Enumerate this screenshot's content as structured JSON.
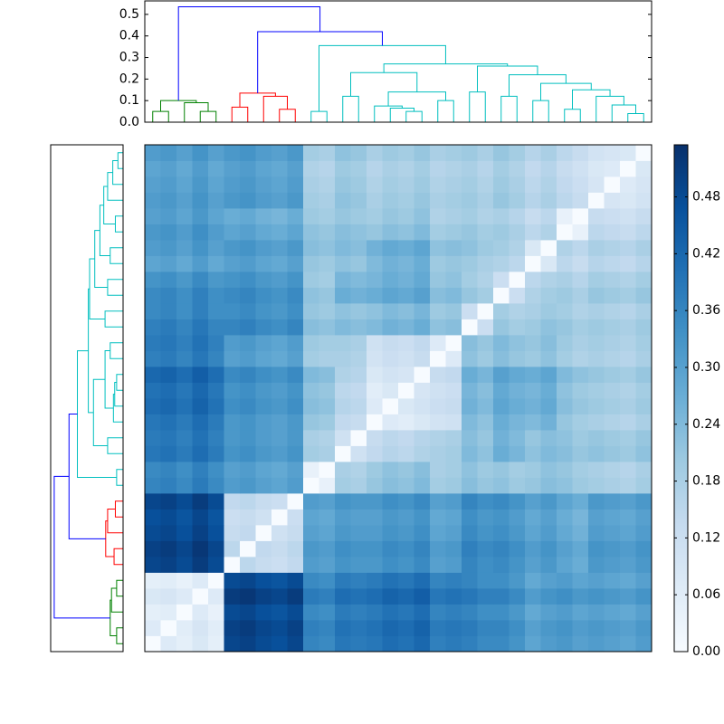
{
  "chart_data": {
    "type": "heatmap",
    "vlim": [
      0,
      0.535
    ],
    "cmap": [
      "#f7fbff",
      "#deebf7",
      "#c6dbef",
      "#9ecae1",
      "#6baed6",
      "#4292c6",
      "#2171b5",
      "#08519c",
      "#08306b"
    ],
    "colorbar_ticks": [
      {
        "value": 0,
        "label": "0.00"
      },
      0.06,
      0.12,
      0.18,
      0.24,
      {
        "value": 0.3,
        "label": "0.30"
      },
      0.36,
      0.42,
      0.48
    ],
    "dendrogram": {
      "ylim": [
        0,
        0.5625
      ],
      "yticks": [
        {
          "value": 0,
          "label": "0.0"
        },
        0.1,
        0.2,
        0.3,
        0.4,
        0.5
      ],
      "linkage": [
        {
          "children": [
            0,
            1
          ],
          "height": 0.05,
          "color": "#008000"
        },
        {
          "children": [
            3,
            4
          ],
          "height": 0.05,
          "color": "#008000"
        },
        {
          "children": [
            2,
            33
          ],
          "height": 0.09,
          "color": "#008000"
        },
        {
          "children": [
            32,
            34
          ],
          "height": 0.1,
          "color": "#008000"
        },
        {
          "children": [
            5,
            6
          ],
          "height": 0.07,
          "color": "#ff0000"
        },
        {
          "children": [
            8,
            9
          ],
          "height": 0.06,
          "color": "#ff0000"
        },
        {
          "children": [
            7,
            37
          ],
          "height": 0.12,
          "color": "#ff0000"
        },
        {
          "children": [
            36,
            38
          ],
          "height": 0.135,
          "color": "#ff0000"
        },
        {
          "children": [
            10,
            11
          ],
          "height": 0.05,
          "color": "#00bfbf"
        },
        {
          "children": [
            12,
            13
          ],
          "height": 0.12,
          "color": "#00bfbf"
        },
        {
          "children": [
            16,
            17
          ],
          "height": 0.05,
          "color": "#00bfbf"
        },
        {
          "children": [
            15,
            42
          ],
          "height": 0.065,
          "color": "#00bfbf"
        },
        {
          "children": [
            14,
            43
          ],
          "height": 0.075,
          "color": "#00bfbf"
        },
        {
          "children": [
            18,
            19
          ],
          "height": 0.1,
          "color": "#00bfbf"
        },
        {
          "children": [
            44,
            45
          ],
          "height": 0.14,
          "color": "#00bfbf"
        },
        {
          "children": [
            41,
            46
          ],
          "height": 0.23,
          "color": "#00bfbf"
        },
        {
          "children": [
            20,
            21
          ],
          "height": 0.14,
          "color": "#00bfbf"
        },
        {
          "children": [
            22,
            23
          ],
          "height": 0.12,
          "color": "#00bfbf"
        },
        {
          "children": [
            24,
            25
          ],
          "height": 0.1,
          "color": "#00bfbf"
        },
        {
          "children": [
            26,
            27
          ],
          "height": 0.06,
          "color": "#00bfbf"
        },
        {
          "children": [
            30,
            31
          ],
          "height": 0.04,
          "color": "#00bfbf"
        },
        {
          "children": [
            29,
            52
          ],
          "height": 0.08,
          "color": "#00bfbf"
        },
        {
          "children": [
            28,
            53
          ],
          "height": 0.12,
          "color": "#00bfbf"
        },
        {
          "children": [
            51,
            54
          ],
          "height": 0.15,
          "color": "#00bfbf"
        },
        {
          "children": [
            50,
            55
          ],
          "height": 0.18,
          "color": "#00bfbf"
        },
        {
          "children": [
            49,
            56
          ],
          "height": 0.22,
          "color": "#00bfbf"
        },
        {
          "children": [
            48,
            57
          ],
          "height": 0.26,
          "color": "#00bfbf"
        },
        {
          "children": [
            47,
            58
          ],
          "height": 0.27,
          "color": "#00bfbf"
        },
        {
          "children": [
            40,
            59
          ],
          "height": 0.355,
          "color": "#00bfbf"
        },
        {
          "children": [
            39,
            60
          ],
          "height": 0.42,
          "color": "#0000ff"
        },
        {
          "children": [
            35,
            61
          ],
          "height": 0.535,
          "color": "#0000ff"
        }
      ]
    },
    "matrix": [
      [
        0,
        0.07,
        0.05,
        0.08,
        0.05,
        0.49,
        0.5,
        0.48,
        0.47,
        0.49,
        0.36,
        0.35,
        0.39,
        0.38,
        0.39,
        0.41,
        0.4,
        0.42,
        0.37,
        0.38,
        0.37,
        0.35,
        0.35,
        0.33,
        0.29,
        0.31,
        0.32,
        0.3,
        0.31,
        0.3,
        0.29,
        0.31
      ],
      [
        0.07,
        0,
        0.06,
        0.09,
        0.06,
        0.5,
        0.51,
        0.49,
        0.48,
        0.5,
        0.37,
        0.36,
        0.4,
        0.39,
        0.4,
        0.42,
        0.41,
        0.43,
        0.38,
        0.39,
        0.38,
        0.36,
        0.36,
        0.34,
        0.3,
        0.32,
        0.33,
        0.31,
        0.32,
        0.31,
        0.3,
        0.32
      ],
      [
        0.05,
        0.06,
        0,
        0.07,
        0.04,
        0.48,
        0.49,
        0.47,
        0.46,
        0.48,
        0.35,
        0.34,
        0.38,
        0.37,
        0.38,
        0.4,
        0.39,
        0.41,
        0.36,
        0.37,
        0.36,
        0.34,
        0.34,
        0.32,
        0.28,
        0.3,
        0.31,
        0.29,
        0.3,
        0.29,
        0.28,
        0.3
      ],
      [
        0.08,
        0.09,
        0.07,
        0,
        0.07,
        0.51,
        0.52,
        0.5,
        0.49,
        0.51,
        0.38,
        0.37,
        0.41,
        0.4,
        0.41,
        0.43,
        0.42,
        0.44,
        0.39,
        0.4,
        0.39,
        0.37,
        0.37,
        0.35,
        0.31,
        0.33,
        0.34,
        0.32,
        0.33,
        0.32,
        0.31,
        0.33
      ],
      [
        0.05,
        0.06,
        0.04,
        0.07,
        0,
        0.48,
        0.49,
        0.47,
        0.46,
        0.48,
        0.35,
        0.34,
        0.38,
        0.37,
        0.38,
        0.4,
        0.39,
        0.41,
        0.36,
        0.37,
        0.36,
        0.34,
        0.34,
        0.32,
        0.28,
        0.3,
        0.31,
        0.29,
        0.3,
        0.29,
        0.28,
        0.3
      ],
      [
        0.49,
        0.5,
        0.48,
        0.51,
        0.48,
        0,
        0.15,
        0.13,
        0.12,
        0.14,
        0.31,
        0.3,
        0.33,
        0.32,
        0.32,
        0.34,
        0.33,
        0.35,
        0.3,
        0.31,
        0.36,
        0.34,
        0.35,
        0.33,
        0.3,
        0.32,
        0.29,
        0.27,
        0.32,
        0.31,
        0.3,
        0.32
      ],
      [
        0.5,
        0.51,
        0.49,
        0.52,
        0.49,
        0.15,
        0,
        0.14,
        0.13,
        0.15,
        0.32,
        0.31,
        0.34,
        0.33,
        0.33,
        0.35,
        0.34,
        0.36,
        0.31,
        0.32,
        0.37,
        0.35,
        0.36,
        0.34,
        0.31,
        0.33,
        0.3,
        0.28,
        0.33,
        0.32,
        0.31,
        0.33
      ],
      [
        0.48,
        0.49,
        0.47,
        0.5,
        0.47,
        0.13,
        0.14,
        0,
        0.11,
        0.13,
        0.3,
        0.29,
        0.32,
        0.31,
        0.31,
        0.33,
        0.32,
        0.34,
        0.29,
        0.3,
        0.35,
        0.33,
        0.34,
        0.32,
        0.29,
        0.31,
        0.28,
        0.26,
        0.31,
        0.3,
        0.29,
        0.31
      ],
      [
        0.47,
        0.48,
        0.46,
        0.49,
        0.46,
        0.12,
        0.13,
        0.11,
        0,
        0.12,
        0.29,
        0.28,
        0.31,
        0.3,
        0.3,
        0.32,
        0.31,
        0.33,
        0.28,
        0.29,
        0.34,
        0.32,
        0.33,
        0.31,
        0.28,
        0.3,
        0.27,
        0.25,
        0.3,
        0.29,
        0.28,
        0.3
      ],
      [
        0.49,
        0.5,
        0.48,
        0.51,
        0.48,
        0.14,
        0.15,
        0.13,
        0.12,
        0,
        0.31,
        0.3,
        0.33,
        0.32,
        0.32,
        0.34,
        0.33,
        0.35,
        0.3,
        0.31,
        0.36,
        0.34,
        0.35,
        0.33,
        0.3,
        0.32,
        0.29,
        0.27,
        0.32,
        0.31,
        0.3,
        0.32
      ],
      [
        0.36,
        0.37,
        0.35,
        0.38,
        0.35,
        0.31,
        0.32,
        0.3,
        0.29,
        0.31,
        0,
        0.04,
        0.19,
        0.18,
        0.21,
        0.23,
        0.22,
        0.24,
        0.19,
        0.2,
        0.23,
        0.21,
        0.22,
        0.2,
        0.21,
        0.23,
        0.22,
        0.2,
        0.19,
        0.18,
        0.17,
        0.19
      ],
      [
        0.35,
        0.36,
        0.34,
        0.37,
        0.34,
        0.3,
        0.31,
        0.29,
        0.28,
        0.3,
        0.04,
        0,
        0.18,
        0.17,
        0.2,
        0.22,
        0.21,
        0.23,
        0.18,
        0.19,
        0.22,
        0.2,
        0.21,
        0.19,
        0.2,
        0.22,
        0.21,
        0.19,
        0.18,
        0.17,
        0.16,
        0.18
      ],
      [
        0.39,
        0.4,
        0.38,
        0.41,
        0.38,
        0.33,
        0.34,
        0.32,
        0.31,
        0.33,
        0.19,
        0.18,
        0,
        0.11,
        0.14,
        0.16,
        0.15,
        0.17,
        0.18,
        0.19,
        0.24,
        0.22,
        0.27,
        0.25,
        0.22,
        0.24,
        0.23,
        0.21,
        0.22,
        0.21,
        0.2,
        0.22
      ],
      [
        0.38,
        0.39,
        0.37,
        0.4,
        0.37,
        0.32,
        0.33,
        0.31,
        0.3,
        0.32,
        0.18,
        0.17,
        0.11,
        0,
        0.13,
        0.15,
        0.14,
        0.16,
        0.17,
        0.18,
        0.23,
        0.21,
        0.26,
        0.24,
        0.21,
        0.23,
        0.22,
        0.2,
        0.21,
        0.2,
        0.19,
        0.21
      ],
      [
        0.39,
        0.4,
        0.38,
        0.41,
        0.38,
        0.32,
        0.33,
        0.31,
        0.3,
        0.32,
        0.21,
        0.2,
        0.14,
        0.13,
        0,
        0.07,
        0.06,
        0.08,
        0.1,
        0.11,
        0.24,
        0.22,
        0.27,
        0.25,
        0.24,
        0.26,
        0.21,
        0.19,
        0.18,
        0.17,
        0.16,
        0.18
      ],
      [
        0.41,
        0.42,
        0.4,
        0.43,
        0.4,
        0.34,
        0.35,
        0.33,
        0.32,
        0.34,
        0.23,
        0.22,
        0.16,
        0.15,
        0.07,
        0,
        0.08,
        0.1,
        0.12,
        0.13,
        0.26,
        0.24,
        0.29,
        0.27,
        0.26,
        0.28,
        0.23,
        0.21,
        0.2,
        0.19,
        0.18,
        0.2
      ],
      [
        0.4,
        0.41,
        0.39,
        0.42,
        0.39,
        0.33,
        0.34,
        0.32,
        0.31,
        0.33,
        0.22,
        0.21,
        0.15,
        0.14,
        0.06,
        0.08,
        0,
        0.09,
        0.11,
        0.12,
        0.25,
        0.23,
        0.28,
        0.26,
        0.25,
        0.27,
        0.22,
        0.2,
        0.19,
        0.18,
        0.17,
        0.19
      ],
      [
        0.42,
        0.43,
        0.41,
        0.44,
        0.41,
        0.35,
        0.36,
        0.34,
        0.33,
        0.35,
        0.24,
        0.23,
        0.17,
        0.16,
        0.08,
        0.1,
        0.09,
        0,
        0.13,
        0.14,
        0.27,
        0.25,
        0.3,
        0.28,
        0.27,
        0.29,
        0.24,
        0.22,
        0.21,
        0.2,
        0.19,
        0.21
      ],
      [
        0.37,
        0.38,
        0.36,
        0.39,
        0.36,
        0.3,
        0.31,
        0.29,
        0.28,
        0.3,
        0.19,
        0.18,
        0.18,
        0.17,
        0.1,
        0.12,
        0.11,
        0.13,
        0,
        0.07,
        0.22,
        0.2,
        0.23,
        0.21,
        0.2,
        0.22,
        0.19,
        0.17,
        0.18,
        0.17,
        0.16,
        0.18
      ],
      [
        0.38,
        0.39,
        0.37,
        0.4,
        0.37,
        0.31,
        0.32,
        0.3,
        0.29,
        0.31,
        0.2,
        0.19,
        0.19,
        0.18,
        0.11,
        0.13,
        0.12,
        0.14,
        0.07,
        0,
        0.23,
        0.21,
        0.24,
        0.22,
        0.21,
        0.23,
        0.2,
        0.18,
        0.19,
        0.18,
        0.17,
        0.19
      ],
      [
        0.37,
        0.38,
        0.36,
        0.39,
        0.36,
        0.36,
        0.37,
        0.35,
        0.34,
        0.36,
        0.23,
        0.22,
        0.24,
        0.23,
        0.24,
        0.26,
        0.25,
        0.27,
        0.22,
        0.23,
        0,
        0.12,
        0.21,
        0.19,
        0.2,
        0.22,
        0.21,
        0.19,
        0.2,
        0.19,
        0.18,
        0.2
      ],
      [
        0.35,
        0.36,
        0.34,
        0.37,
        0.34,
        0.34,
        0.35,
        0.33,
        0.32,
        0.34,
        0.21,
        0.2,
        0.22,
        0.21,
        0.22,
        0.24,
        0.23,
        0.25,
        0.2,
        0.21,
        0.12,
        0,
        0.19,
        0.17,
        0.18,
        0.2,
        0.19,
        0.17,
        0.18,
        0.17,
        0.16,
        0.18
      ],
      [
        0.35,
        0.36,
        0.34,
        0.37,
        0.34,
        0.35,
        0.36,
        0.34,
        0.33,
        0.35,
        0.22,
        0.21,
        0.27,
        0.26,
        0.27,
        0.29,
        0.28,
        0.3,
        0.23,
        0.24,
        0.21,
        0.19,
        0,
        0.12,
        0.17,
        0.19,
        0.2,
        0.18,
        0.21,
        0.2,
        0.19,
        0.21
      ],
      [
        0.33,
        0.34,
        0.32,
        0.35,
        0.32,
        0.33,
        0.34,
        0.32,
        0.31,
        0.33,
        0.2,
        0.19,
        0.25,
        0.24,
        0.25,
        0.27,
        0.26,
        0.28,
        0.21,
        0.22,
        0.19,
        0.17,
        0.12,
        0,
        0.15,
        0.17,
        0.18,
        0.16,
        0.19,
        0.18,
        0.17,
        0.19
      ],
      [
        0.29,
        0.3,
        0.28,
        0.31,
        0.28,
        0.3,
        0.31,
        0.29,
        0.28,
        0.3,
        0.21,
        0.2,
        0.22,
        0.21,
        0.24,
        0.26,
        0.25,
        0.27,
        0.2,
        0.21,
        0.2,
        0.18,
        0.17,
        0.15,
        0,
        0.08,
        0.15,
        0.13,
        0.16,
        0.15,
        0.14,
        0.16
      ],
      [
        0.31,
        0.32,
        0.3,
        0.33,
        0.3,
        0.32,
        0.33,
        0.31,
        0.3,
        0.32,
        0.23,
        0.22,
        0.24,
        0.23,
        0.26,
        0.28,
        0.27,
        0.29,
        0.22,
        0.23,
        0.22,
        0.2,
        0.19,
        0.17,
        0.08,
        0,
        0.17,
        0.15,
        0.18,
        0.17,
        0.16,
        0.18
      ],
      [
        0.32,
        0.33,
        0.31,
        0.34,
        0.31,
        0.29,
        0.3,
        0.28,
        0.27,
        0.29,
        0.22,
        0.21,
        0.23,
        0.22,
        0.21,
        0.23,
        0.22,
        0.24,
        0.19,
        0.2,
        0.21,
        0.19,
        0.2,
        0.18,
        0.15,
        0.17,
        0,
        0.04,
        0.15,
        0.14,
        0.13,
        0.15
      ],
      [
        0.3,
        0.31,
        0.29,
        0.32,
        0.29,
        0.27,
        0.28,
        0.26,
        0.25,
        0.27,
        0.2,
        0.19,
        0.21,
        0.2,
        0.19,
        0.21,
        0.2,
        0.22,
        0.17,
        0.18,
        0.19,
        0.17,
        0.18,
        0.16,
        0.13,
        0.15,
        0.04,
        0,
        0.13,
        0.12,
        0.11,
        0.13
      ],
      [
        0.31,
        0.32,
        0.3,
        0.33,
        0.3,
        0.32,
        0.33,
        0.31,
        0.3,
        0.32,
        0.19,
        0.18,
        0.22,
        0.21,
        0.18,
        0.2,
        0.19,
        0.21,
        0.18,
        0.19,
        0.2,
        0.18,
        0.21,
        0.19,
        0.16,
        0.18,
        0.15,
        0.13,
        0,
        0.09,
        0.08,
        0.1
      ],
      [
        0.3,
        0.31,
        0.29,
        0.32,
        0.29,
        0.31,
        0.32,
        0.3,
        0.29,
        0.31,
        0.18,
        0.17,
        0.21,
        0.2,
        0.17,
        0.19,
        0.18,
        0.2,
        0.17,
        0.18,
        0.19,
        0.17,
        0.2,
        0.18,
        0.15,
        0.17,
        0.14,
        0.12,
        0.09,
        0,
        0.07,
        0.09
      ],
      [
        0.29,
        0.3,
        0.28,
        0.31,
        0.28,
        0.3,
        0.31,
        0.29,
        0.28,
        0.3,
        0.17,
        0.16,
        0.2,
        0.19,
        0.16,
        0.18,
        0.17,
        0.19,
        0.16,
        0.17,
        0.18,
        0.16,
        0.19,
        0.17,
        0.14,
        0.16,
        0.13,
        0.11,
        0.08,
        0.07,
        0,
        0.08
      ],
      [
        0.31,
        0.32,
        0.3,
        0.33,
        0.3,
        0.32,
        0.33,
        0.31,
        0.3,
        0.32,
        0.19,
        0.18,
        0.22,
        0.21,
        0.18,
        0.2,
        0.19,
        0.21,
        0.18,
        0.19,
        0.2,
        0.18,
        0.21,
        0.19,
        0.16,
        0.18,
        0.15,
        0.13,
        0.1,
        0.09,
        0.08,
        0
      ]
    ]
  }
}
